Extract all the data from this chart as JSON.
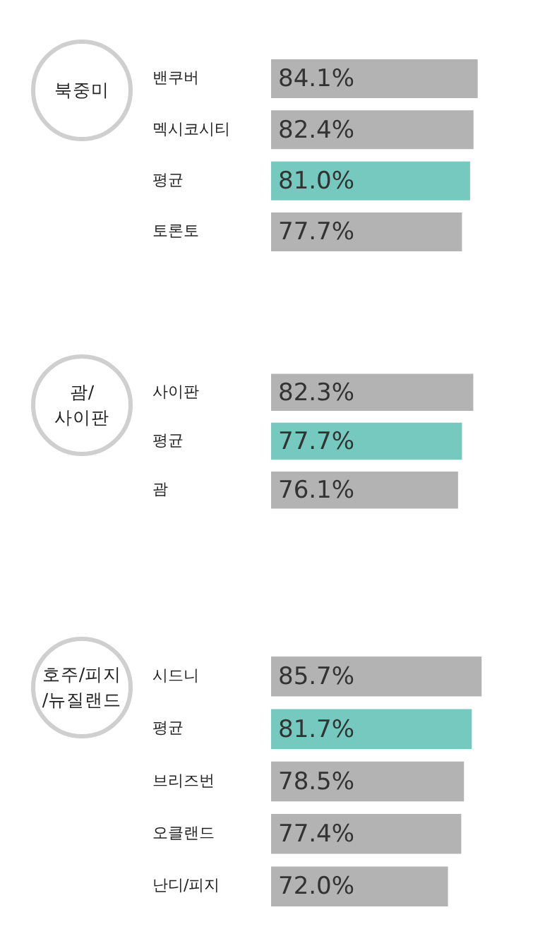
{
  "chart_data": [
    {
      "type": "bar",
      "orientation": "horizontal",
      "title": "북중미",
      "categories": [
        "밴쿠버",
        "멕시코시티",
        "평균",
        "토론토"
      ],
      "values": [
        84.1,
        82.4,
        81.0,
        77.7
      ],
      "colors": [
        "#b3b3b3",
        "#b3b3b3",
        "#76c9bf",
        "#b3b3b3"
      ],
      "value_labels": [
        "84.1%",
        "82.4%",
        "81.0%",
        "77.7%"
      ]
    },
    {
      "type": "bar",
      "orientation": "horizontal",
      "title": "괌/\n사이판",
      "categories": [
        "사이판",
        "평균",
        "괌"
      ],
      "values": [
        82.3,
        77.7,
        76.1
      ],
      "colors": [
        "#b3b3b3",
        "#76c9bf",
        "#b3b3b3"
      ],
      "value_labels": [
        "82.3%",
        "77.7%",
        "76.1%"
      ]
    },
    {
      "type": "bar",
      "orientation": "horizontal",
      "title": "호주/피지\n/뉴질랜드",
      "categories": [
        "시드니",
        "평균",
        "브리즈번",
        "오클랜드",
        "난디/피지"
      ],
      "values": [
        85.7,
        81.7,
        78.5,
        77.4,
        72.0
      ],
      "colors": [
        "#b3b3b3",
        "#76c9bf",
        "#b3b3b3",
        "#b3b3b3",
        "#b3b3b3"
      ],
      "value_labels": [
        "85.7%",
        "81.7%",
        "78.5%",
        "77.4%",
        "72.0%"
      ]
    }
  ]
}
